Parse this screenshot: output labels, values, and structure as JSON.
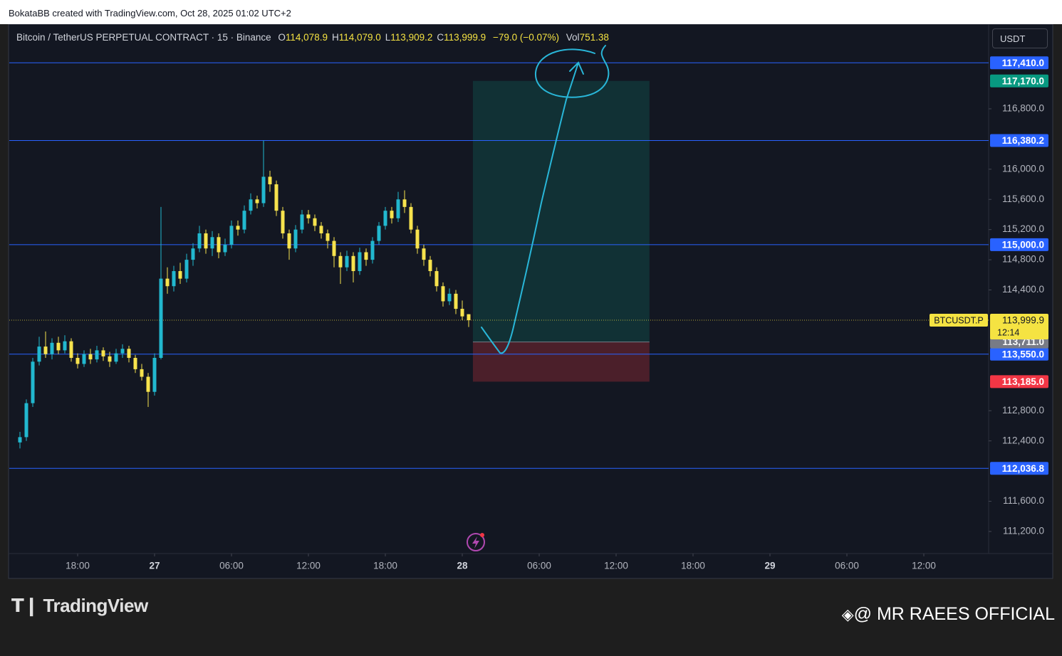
{
  "attribution": "BokataBB created with TradingView.com, Oct 28, 2025 01:02 UTC+2",
  "chart_data": {
    "type": "candlestick",
    "symbol_title": "Bitcoin / TetherUS PERPETUAL CONTRACT · 15 · Binance",
    "ohlc_header": [
      {
        "key": "O",
        "value": "114,078.9"
      },
      {
        "key": "H",
        "value": "114,079.0"
      },
      {
        "key": "L",
        "value": "113,909.2"
      },
      {
        "key": "C",
        "value": "113,999.9"
      }
    ],
    "change": "−79.0 (−0.07%)",
    "volume_key": "Vol",
    "volume": "751.38",
    "currency": "USDT",
    "up_color": "#22b8cf",
    "down_color": "#f7e34d",
    "x": [
      13.5,
      14,
      14.5,
      15,
      15.5,
      16,
      16.5,
      17,
      17.5,
      18,
      18.5,
      19,
      19.5,
      20,
      20.5,
      21,
      21.5,
      22,
      22.5,
      23,
      23.5,
      24,
      24.5,
      25,
      25.5,
      26,
      26.5,
      27,
      27.5,
      28,
      28.5,
      29,
      29.5,
      30,
      30.5,
      31,
      31.5,
      32,
      32.5,
      33,
      33.5,
      34,
      34.5,
      35,
      35.5,
      36,
      36.5,
      37,
      37.5,
      38,
      38.5,
      39,
      39.5,
      40,
      40.5,
      41,
      41.5,
      42,
      42.5,
      43,
      43.5,
      44,
      44.5,
      45,
      45.5,
      46,
      46.5,
      47,
      47.5,
      48,
      48.5
    ],
    "candles": [
      [
        112380,
        112520,
        112300,
        112450
      ],
      [
        112450,
        112950,
        112400,
        112900
      ],
      [
        112900,
        113500,
        112850,
        113450
      ],
      [
        113450,
        113780,
        113400,
        113650
      ],
      [
        113650,
        113850,
        113500,
        113550
      ],
      [
        113550,
        113760,
        113480,
        113700
      ],
      [
        113700,
        113780,
        113550,
        113600
      ],
      [
        113600,
        113800,
        113560,
        113720
      ],
      [
        113720,
        113760,
        113450,
        113500
      ],
      [
        113500,
        113560,
        113360,
        113420
      ],
      [
        113420,
        113600,
        113380,
        113550
      ],
      [
        113550,
        113620,
        113420,
        113480
      ],
      [
        113480,
        113660,
        113440,
        113600
      ],
      [
        113600,
        113640,
        113460,
        113520
      ],
      [
        113520,
        113580,
        113380,
        113450
      ],
      [
        113450,
        113620,
        113420,
        113560
      ],
      [
        113560,
        113680,
        113500,
        113620
      ],
      [
        113620,
        113660,
        113440,
        113500
      ],
      [
        113500,
        113540,
        113300,
        113350
      ],
      [
        113350,
        113420,
        113200,
        113250
      ],
      [
        113250,
        113300,
        112850,
        113050
      ],
      [
        113050,
        113560,
        113000,
        113500
      ],
      [
        113500,
        115500,
        113480,
        114550
      ],
      [
        114550,
        114700,
        114350,
        114450
      ],
      [
        114450,
        114720,
        114380,
        114650
      ],
      [
        114650,
        114760,
        114480,
        114550
      ],
      [
        114550,
        114880,
        114500,
        114800
      ],
      [
        114800,
        115020,
        114720,
        114950
      ],
      [
        114950,
        115250,
        114900,
        115150
      ],
      [
        115150,
        115200,
        114880,
        114950
      ],
      [
        114950,
        115180,
        114850,
        115100
      ],
      [
        115100,
        115150,
        114820,
        114900
      ],
      [
        114900,
        115080,
        114850,
        115000
      ],
      [
        115000,
        115320,
        114950,
        115250
      ],
      [
        115250,
        115320,
        115120,
        115200
      ],
      [
        115200,
        115520,
        115150,
        115450
      ],
      [
        115450,
        115680,
        115400,
        115600
      ],
      [
        115600,
        115650,
        115480,
        115550
      ],
      [
        115550,
        116380,
        115500,
        115900
      ],
      [
        115900,
        115980,
        115700,
        115800
      ],
      [
        115800,
        115850,
        115380,
        115450
      ],
      [
        115450,
        115500,
        115080,
        115150
      ],
      [
        115150,
        115200,
        114800,
        114950
      ],
      [
        114950,
        115260,
        114900,
        115200
      ],
      [
        115200,
        115460,
        115150,
        115400
      ],
      [
        115400,
        115460,
        115280,
        115350
      ],
      [
        115350,
        115400,
        115180,
        115250
      ],
      [
        115250,
        115300,
        115080,
        115150
      ],
      [
        115150,
        115200,
        114950,
        115050
      ],
      [
        115050,
        115100,
        114700,
        114850
      ],
      [
        114850,
        114900,
        114480,
        114700
      ],
      [
        114700,
        114920,
        114650,
        114850
      ],
      [
        114850,
        114900,
        114500,
        114650
      ],
      [
        114650,
        114960,
        114600,
        114900
      ],
      [
        114900,
        114950,
        114720,
        114800
      ],
      [
        114800,
        115100,
        114750,
        115050
      ],
      [
        115050,
        115300,
        115000,
        115250
      ],
      [
        115250,
        115500,
        115200,
        115450
      ],
      [
        115450,
        115500,
        115280,
        115350
      ],
      [
        115350,
        115700,
        115300,
        115600
      ],
      [
        115600,
        115720,
        115420,
        115500
      ],
      [
        115500,
        115550,
        115150,
        115200
      ],
      [
        115200,
        115250,
        114880,
        114950
      ],
      [
        114950,
        115000,
        114720,
        114800
      ],
      [
        114800,
        114850,
        114580,
        114650
      ],
      [
        114650,
        114700,
        114380,
        114450
      ],
      [
        114450,
        114500,
        114180,
        114250
      ],
      [
        114250,
        114420,
        114200,
        114350
      ],
      [
        114350,
        114400,
        114080,
        114150
      ],
      [
        114150,
        114260,
        114000,
        114050
      ],
      [
        114078.9,
        114079.0,
        113909.2,
        113999.9
      ]
    ],
    "xlim": [
      12.667,
      89.056
    ],
    "ylim": [
      110917,
      117912
    ],
    "xticks": [
      {
        "value": 18,
        "label": "18:00"
      },
      {
        "value": 24,
        "label": "27"
      },
      {
        "value": 30,
        "label": "06:00"
      },
      {
        "value": 36,
        "label": "12:00"
      },
      {
        "value": 42,
        "label": "18:00"
      },
      {
        "value": 48,
        "label": "28"
      },
      {
        "value": 54,
        "label": "06:00"
      },
      {
        "value": 60,
        "label": "12:00"
      },
      {
        "value": 66,
        "label": "18:00"
      },
      {
        "value": 72,
        "label": "29"
      },
      {
        "value": 78,
        "label": "06:00"
      },
      {
        "value": 84,
        "label": "12:00"
      }
    ],
    "yticks": [
      {
        "value": 116800,
        "label": "116,800.0"
      },
      {
        "value": 116000,
        "label": "116,000.0"
      },
      {
        "value": 115600,
        "label": "115,600.0"
      },
      {
        "value": 115200,
        "label": "115,200.0"
      },
      {
        "value": 114800,
        "label": "114,800.0"
      },
      {
        "value": 114400,
        "label": "114,400.0"
      },
      {
        "value": 112800,
        "label": "112,800.0"
      },
      {
        "value": 112400,
        "label": "112,400.0"
      },
      {
        "value": 111600,
        "label": "111,600.0"
      },
      {
        "value": 111200,
        "label": "111,200.0"
      }
    ],
    "levels": [
      {
        "value": 117410,
        "label": "117,410.0"
      },
      {
        "value": 116380.2,
        "label": "116,380.2"
      },
      {
        "value": 115000,
        "label": "115,000.0"
      },
      {
        "value": 113550,
        "label": "113,550.0"
      },
      {
        "value": 112036.8,
        "label": "112,036.8"
      }
    ],
    "level_color": "#2962ff",
    "position": {
      "x": [
        48.83,
        62.6
      ],
      "target": {
        "value": 117170,
        "label": "117,170.0",
        "color": "#089981"
      },
      "entry": {
        "value": 113711,
        "label": "113,711.0",
        "color": "#787b86"
      },
      "stop": {
        "value": 113185,
        "label": "113,185.0",
        "color": "#f23645"
      }
    },
    "last_price": {
      "value": 113999.9,
      "label": "113,999.9",
      "symbol": "BTCUSDT.P",
      "countdown": "12:14",
      "color": "#f5e342"
    }
  },
  "branding": "TradingView",
  "watermark": "@ MR RAEES OFFICIAL"
}
